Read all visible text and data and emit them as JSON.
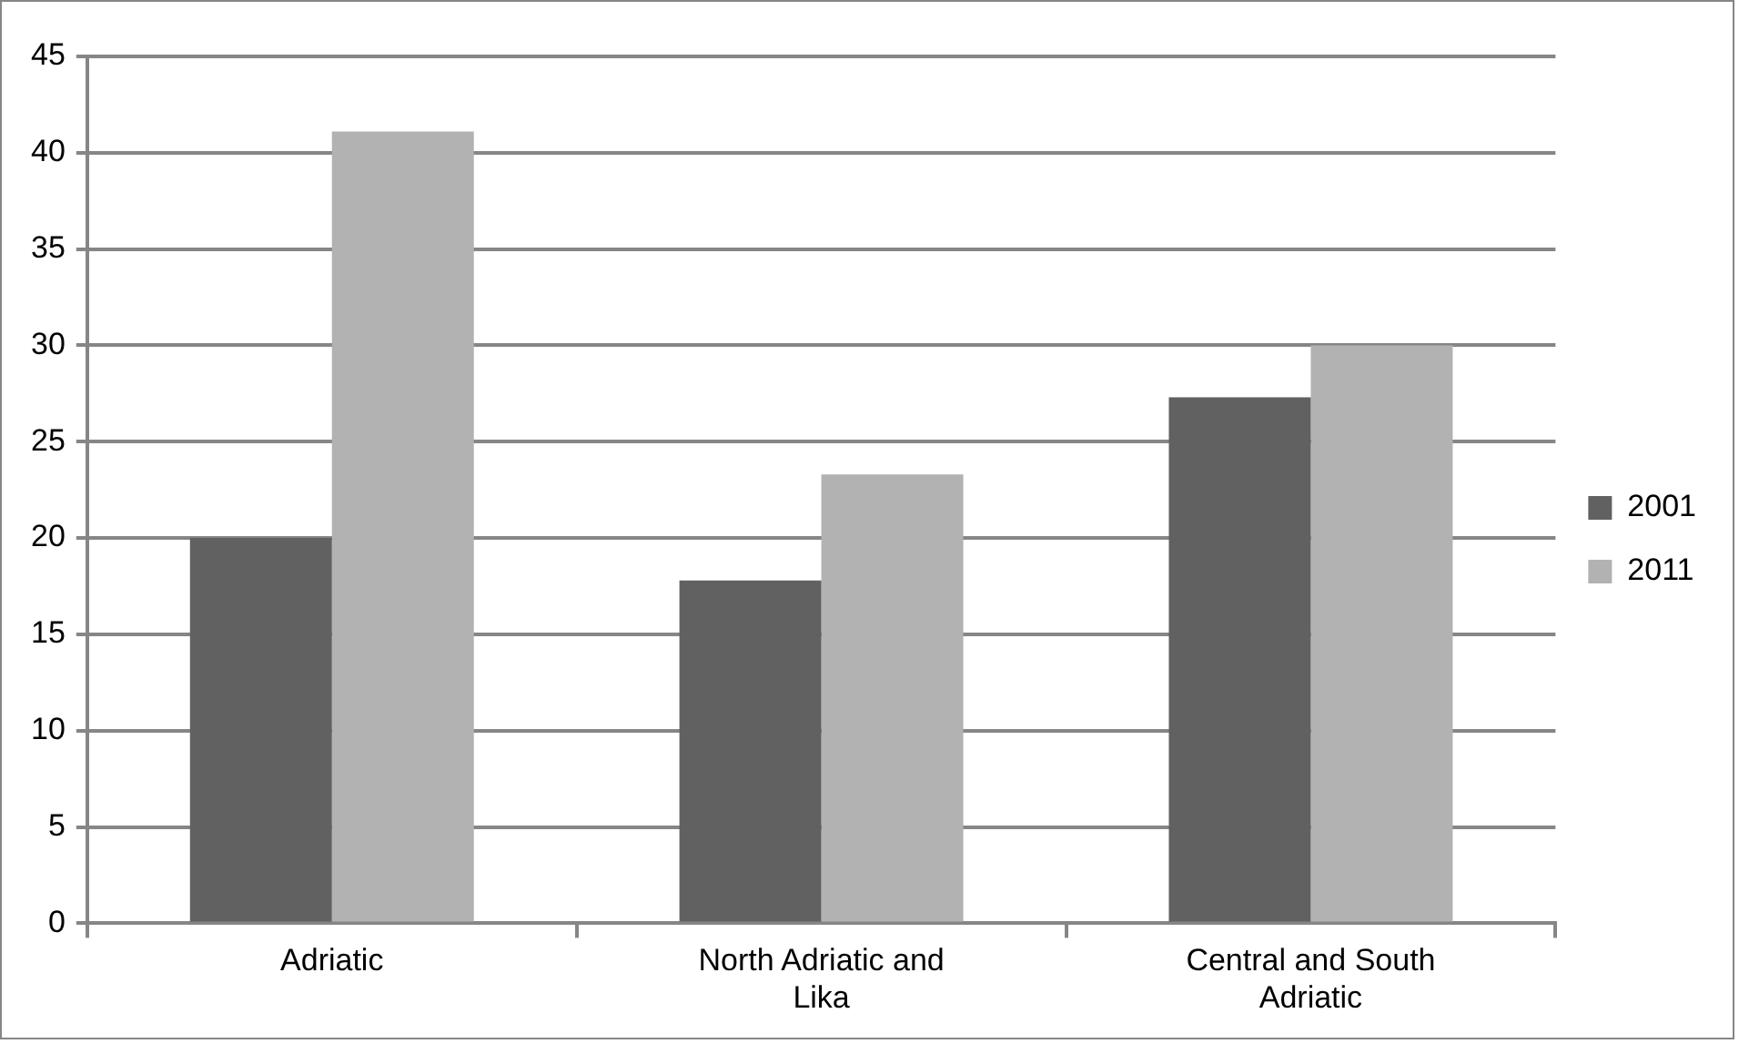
{
  "chart_data": {
    "type": "bar",
    "categories": [
      "Adriatic",
      "North Adriatic and Lika",
      "Central and South Adriatic"
    ],
    "series": [
      {
        "name": "2001",
        "color": "#616161",
        "values": [
          20,
          17.8,
          27.3
        ]
      },
      {
        "name": "2011",
        "color": "#b2b2b2",
        "values": [
          41.1,
          23.3,
          30
        ]
      }
    ],
    "ylim": [
      0,
      45
    ],
    "yticks": [
      0,
      5,
      10,
      15,
      20,
      25,
      30,
      35,
      40,
      45
    ],
    "grid": "y",
    "legend": "right"
  }
}
